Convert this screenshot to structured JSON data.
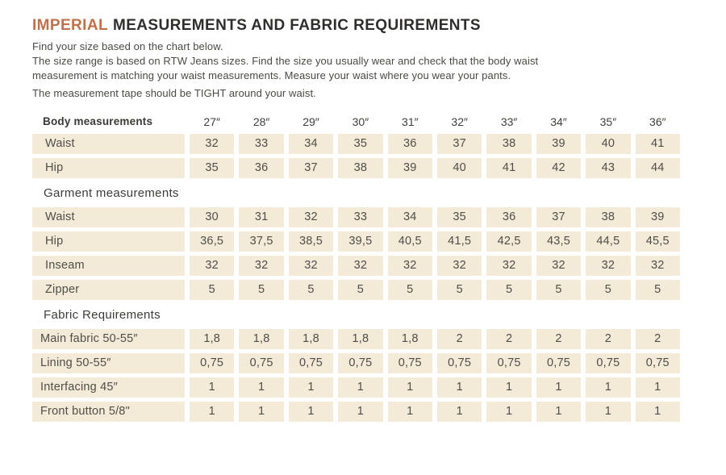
{
  "colors": {
    "accent": "#c0714a",
    "cell_background": "#f3ead8",
    "title_text": "#2f2e2c",
    "body_text": "#4a4944"
  },
  "header": {
    "title_highlight": "IMPERIAL",
    "title_rest": "MEASUREMENTS AND FABRIC REQUIREMENTS",
    "intro_1": "Find your size based on the chart below.",
    "intro_2": "The size range is based on RTW Jeans sizes. Find the size you usually wear and check that the body waist measurement is matching your waist measurements. Measure your waist where you wear your pants.",
    "intro_3": "The measurement tape should be TIGHT around your waist."
  },
  "table": {
    "column_header_label": "Body measurements",
    "size_columns": [
      "27″",
      "28″",
      "29″",
      "30″",
      "31″",
      "32″",
      "33″",
      "34″",
      "35″",
      "36″"
    ],
    "body_measurement_rows": [
      {
        "label": "Waist",
        "values": [
          "32",
          "33",
          "34",
          "35",
          "36",
          "37",
          "38",
          "39",
          "40",
          "41"
        ]
      },
      {
        "label": "Hip",
        "values": [
          "35",
          "36",
          "37",
          "38",
          "39",
          "40",
          "41",
          "42",
          "43",
          "44"
        ]
      }
    ],
    "garment_section_header": "Garment measurements",
    "garment_measurement_rows": [
      {
        "label": "Waist",
        "values": [
          "30",
          "31",
          "32",
          "33",
          "34",
          "35",
          "36",
          "37",
          "38",
          "39"
        ]
      },
      {
        "label": "Hip",
        "values": [
          "36,5",
          "37,5",
          "38,5",
          "39,5",
          "40,5",
          "41,5",
          "42,5",
          "43,5",
          "44,5",
          "45,5"
        ]
      },
      {
        "label": "Inseam",
        "values": [
          "32",
          "32",
          "32",
          "32",
          "32",
          "32",
          "32",
          "32",
          "32",
          "32"
        ]
      },
      {
        "label": "Zipper",
        "values": [
          "5",
          "5",
          "5",
          "5",
          "5",
          "5",
          "5",
          "5",
          "5",
          "5"
        ]
      }
    ],
    "fabric_section_header": "Fabric Requirements",
    "fabric_requirement_rows": [
      {
        "label": "Main fabric 50-55″",
        "values": [
          "1,8",
          "1,8",
          "1,8",
          "1,8",
          "1,8",
          "2",
          "2",
          "2",
          "2",
          "2"
        ]
      },
      {
        "label": "Lining 50-55″",
        "values": [
          "0,75",
          "0,75",
          "0,75",
          "0,75",
          "0,75",
          "0,75",
          "0,75",
          "0,75",
          "0,75",
          "0,75"
        ]
      },
      {
        "label": "Interfacing 45″",
        "values": [
          "1",
          "1",
          "1",
          "1",
          "1",
          "1",
          "1",
          "1",
          "1",
          "1"
        ]
      },
      {
        "label": "Front button 5/8\"",
        "values": [
          "1",
          "1",
          "1",
          "1",
          "1",
          "1",
          "1",
          "1",
          "1",
          "1"
        ]
      }
    ]
  }
}
